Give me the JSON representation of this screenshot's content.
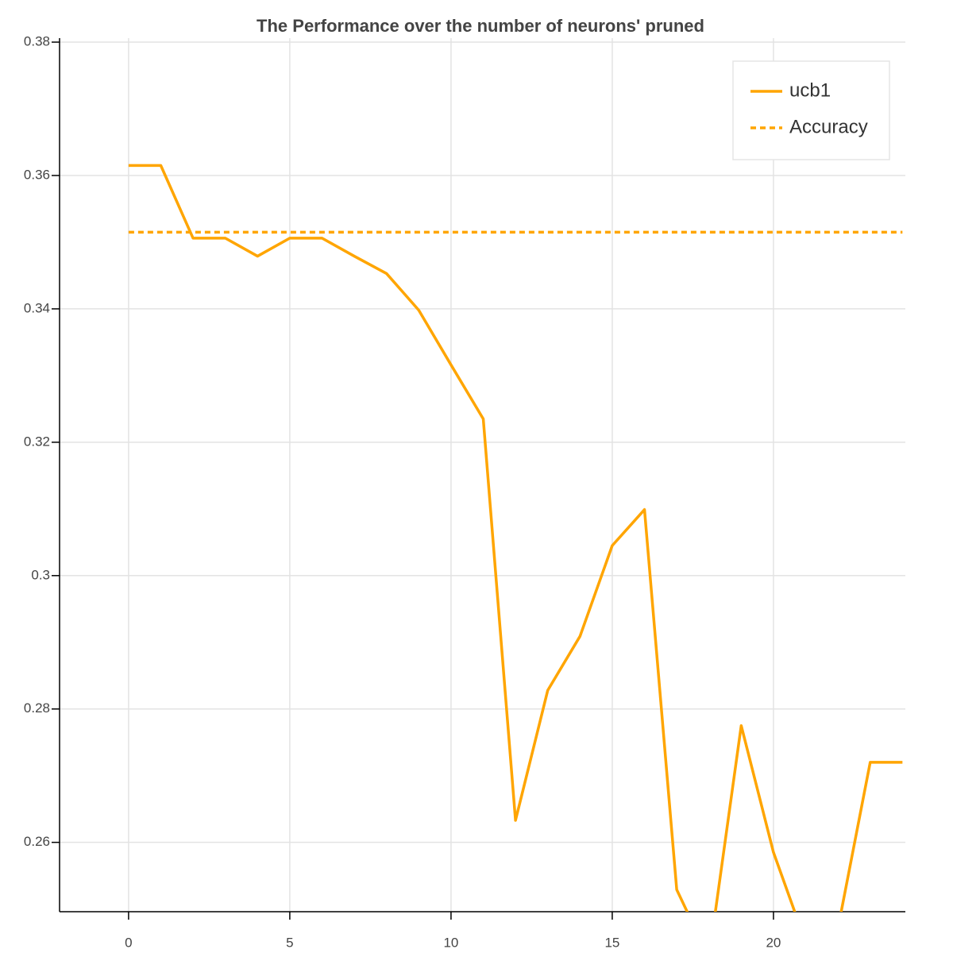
{
  "chart_data": {
    "type": "line",
    "title": "The Performance over the number of neurons' pruned",
    "series": [
      {
        "name": "ucb1",
        "color": "#ffa500",
        "dashed": false,
        "x": [
          0,
          1,
          2,
          3,
          4,
          5,
          6,
          7,
          8,
          9,
          10,
          11,
          12,
          13,
          14,
          15,
          16,
          17,
          18,
          19,
          20,
          21,
          22,
          23,
          24
        ],
        "values": [
          0.3615,
          0.3615,
          0.3506,
          0.3506,
          0.3479,
          0.3506,
          0.3506,
          0.3479,
          0.3453,
          0.3398,
          0.3316,
          0.3235,
          0.2633,
          0.2828,
          0.2909,
          0.3045,
          0.3099,
          0.2529,
          0.2427,
          0.2775,
          0.2585,
          0.245,
          0.2471,
          0.272,
          0.272
        ]
      },
      {
        "name": "Accuracy",
        "color": "#ffa500",
        "dashed": true,
        "x": [
          0,
          24
        ],
        "values": [
          0.3515,
          0.3515
        ]
      }
    ],
    "xlim": [
      -2.14,
      24.09
    ],
    "xticks": [
      0,
      5,
      10,
      15,
      20
    ],
    "ylim": [
      0.2496,
      0.3806
    ],
    "yticks": [
      0.26,
      0.28,
      0.3,
      0.32,
      0.34,
      0.36,
      0.38
    ],
    "grid": true,
    "legend": "top-right"
  }
}
